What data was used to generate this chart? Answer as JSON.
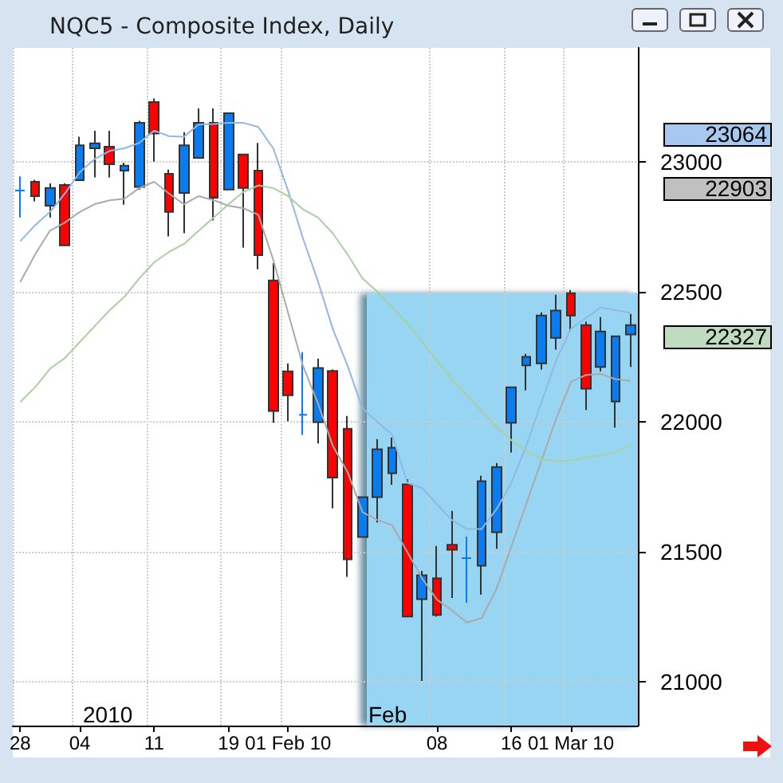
{
  "chart_data": {
    "type": "candlestick",
    "title": "NQC5 - Composite Index, Daily",
    "categories": [
      "28",
      null,
      null,
      null,
      "04",
      null,
      null,
      null,
      null,
      "11",
      null,
      null,
      null,
      null,
      "19",
      null,
      null,
      null,
      "01 Feb 10",
      null,
      null,
      null,
      null,
      null,
      null,
      null,
      null,
      null,
      "08",
      null,
      null,
      null,
      null,
      "16",
      null,
      null,
      null,
      "01 Mar 10",
      null,
      null,
      null,
      null
    ],
    "ohlc": [
      [
        22890,
        22945,
        22787,
        22890
      ],
      [
        22924,
        22932,
        22849,
        22869
      ],
      [
        22832,
        22918,
        22787,
        22900
      ],
      [
        22912,
        22918,
        22679,
        22679
      ],
      [
        22930,
        23098,
        22930,
        23065
      ],
      [
        23053,
        23121,
        22941,
        23072
      ],
      [
        23059,
        23121,
        22941,
        22992
      ],
      [
        22967,
        22998,
        22836,
        22986
      ],
      [
        22904,
        23159,
        22894,
        23151
      ],
      [
        23231,
        23245,
        23002,
        23110
      ],
      [
        22955,
        22971,
        22714,
        22808
      ],
      [
        22881,
        23115,
        22726,
        23065
      ],
      [
        23016,
        23207,
        23016,
        23151
      ],
      [
        23151,
        23207,
        22775,
        22863
      ],
      [
        22894,
        23188,
        22894,
        23188
      ],
      [
        23029,
        23029,
        22671,
        22900
      ],
      [
        22967,
        23074,
        22587,
        22642
      ],
      [
        22544,
        22611,
        21996,
        22041
      ],
      [
        22194,
        22225,
        22002,
        22102
      ],
      [
        22027,
        22268,
        21949,
        22027
      ],
      [
        21998,
        22243,
        21916,
        22207
      ],
      [
        22196,
        22202,
        21667,
        21785
      ],
      [
        21973,
        22022,
        21403,
        21470
      ],
      [
        21556,
        21710,
        21556,
        21710
      ],
      [
        21710,
        21933,
        21612,
        21894
      ],
      [
        21802,
        21939,
        21757,
        21900
      ],
      [
        21759,
        21779,
        21250,
        21250
      ],
      [
        21317,
        21426,
        21002,
        21409
      ],
      [
        21397,
        21522,
        21250,
        21256
      ],
      [
        21526,
        21657,
        21321,
        21507
      ],
      [
        21475,
        21558,
        21303,
        21475
      ],
      [
        21446,
        21792,
        21334,
        21771
      ],
      [
        21575,
        21841,
        21511,
        21826
      ],
      [
        21996,
        22133,
        21882,
        22133
      ],
      [
        22217,
        22262,
        22121,
        22250
      ],
      [
        22225,
        22421,
        22201,
        22409
      ],
      [
        22323,
        22489,
        22278,
        22428
      ],
      [
        22495,
        22507,
        22348,
        22409
      ],
      [
        22372,
        22385,
        22045,
        22127
      ],
      [
        22211,
        22403,
        22194,
        22348
      ],
      [
        22078,
        22329,
        21978,
        22329
      ],
      [
        22336,
        22415,
        22211,
        22372
      ]
    ],
    "colors": [
      "#0a7cf0",
      "#ff0000",
      "#0a7cf0",
      "#ff0000",
      "#0a7cf0",
      "#0a7cf0",
      "#ff0000",
      "#0a7cf0",
      "#0a7cf0",
      "#ff0000",
      "#ff0000",
      "#0a7cf0",
      "#0a7cf0",
      "#ff0000",
      "#0a7cf0",
      "#ff0000",
      "#ff0000",
      "#ff0000",
      "#ff0000",
      "#0a7cf0",
      "#0a7cf0",
      "#ff0000",
      "#ff0000",
      "#0a7cf0",
      "#0a7cf0",
      "#0a7cf0",
      "#ff0000",
      "#0a7cf0",
      "#ff0000",
      "#ff0000",
      "#0a7cf0",
      "#0a7cf0",
      "#0a7cf0",
      "#0a7cf0",
      "#0a7cf0",
      "#0a7cf0",
      "#0a7cf0",
      "#ff0000",
      "#ff0000",
      "#0a7cf0",
      "#0a7cf0",
      "#0a7cf0"
    ],
    "series": [
      {
        "type": "line",
        "color": "#8fb8e8",
        "values": [
          22695,
          22757,
          22808,
          22879,
          22961,
          23012,
          23043,
          23053,
          23074,
          23121,
          23100,
          23098,
          23145,
          23147,
          23151,
          23151,
          23135,
          23053,
          22890,
          22706,
          22542,
          22358,
          22215,
          22051,
          22000,
          21949,
          21765,
          21745,
          21683,
          21622,
          21587,
          21587,
          21663,
          21765,
          21908,
          22072,
          22235,
          22358,
          22399,
          22440,
          22430,
          22419
        ]
      },
      {
        "type": "line",
        "color": "#aaaaaa",
        "values": [
          22538,
          22644,
          22736,
          22767,
          22808,
          22838,
          22853,
          22859,
          22900,
          22924,
          22879,
          22838,
          22869,
          22853,
          22832,
          22822,
          22797,
          22624,
          22419,
          22215,
          22072,
          21908,
          21806,
          21652,
          21622,
          21601,
          21499,
          21397,
          21315,
          21274,
          21227,
          21244,
          21356,
          21520,
          21683,
          21847,
          22010,
          22154,
          22180,
          22184,
          22164,
          22158
        ]
      },
      {
        "type": "line",
        "color": "#a8d0a0",
        "values": [
          22076,
          22133,
          22204,
          22245,
          22307,
          22368,
          22429,
          22481,
          22552,
          22614,
          22654,
          22685,
          22736,
          22787,
          22838,
          22885,
          22910,
          22900,
          22869,
          22818,
          22787,
          22726,
          22644,
          22552,
          22501,
          22440,
          22379,
          22307,
          22235,
          22164,
          22102,
          22041,
          21980,
          21929,
          21888,
          21857,
          21847,
          21851,
          21863,
          21871,
          21882,
          21912
        ]
      }
    ],
    "marker": "none",
    "line_style": "solid",
    "ylim": [
      20830,
      23440
    ],
    "yticks": [
      21000,
      21500,
      22000,
      22500,
      23000
    ],
    "annotations": [
      "2010",
      "Feb",
      "23064",
      "22903",
      "22327"
    ],
    "grid": true
  }
}
